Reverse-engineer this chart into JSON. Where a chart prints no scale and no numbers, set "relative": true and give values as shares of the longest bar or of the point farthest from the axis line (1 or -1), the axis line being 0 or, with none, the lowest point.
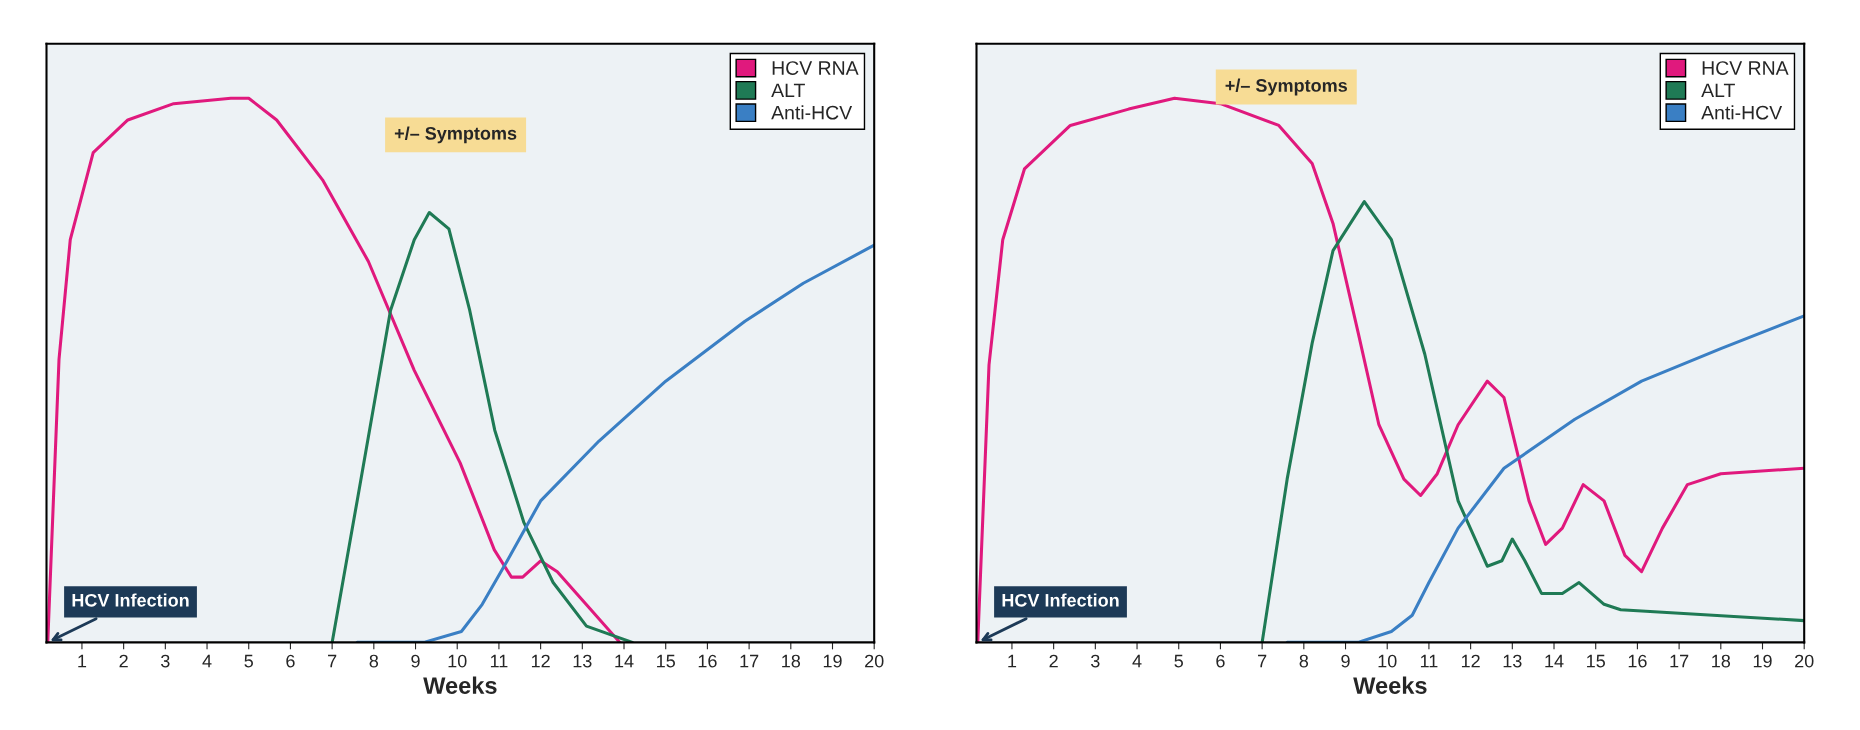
{
  "chart_data": [
    {
      "type": "line",
      "relative": true,
      "xlabel": "Weeks",
      "xlim": [
        0.15,
        20
      ],
      "xticks": [
        1,
        2,
        3,
        4,
        5,
        6,
        7,
        8,
        9,
        10,
        11,
        12,
        13,
        14,
        15,
        16,
        17,
        18,
        19,
        20
      ],
      "tick_labels": "x",
      "grid": false,
      "legend": "top right",
      "marker": "none",
      "line_style": "solid",
      "annotations": [
        "+/– Symptoms",
        {
          "text": "HCV Infection",
          "x": 0.18,
          "y": 0
        }
      ],
      "series": [
        {
          "name": "HCV RNA",
          "color": "#e0197d",
          "x": [
            0.18,
            0.45,
            0.72,
            1.27,
            2.1,
            3.2,
            4.57,
            5.0,
            5.67,
            6.77,
            7.87,
            8.97,
            10.07,
            10.89,
            11.3,
            11.57,
            12.0,
            12.4,
            13.09,
            13.9
          ],
          "values": [
            0,
            0.52,
            0.74,
            0.9,
            0.96,
            0.99,
            1.0,
            1.0,
            0.96,
            0.85,
            0.7,
            0.5,
            0.33,
            0.17,
            0.12,
            0.12,
            0.15,
            0.13,
            0.07,
            0
          ]
        },
        {
          "name": "ALT",
          "color": "#1f7a55",
          "x": [
            7.0,
            7.6,
            8.4,
            8.97,
            9.33,
            9.8,
            10.3,
            10.9,
            11.6,
            12.3,
            13.1,
            14.2
          ],
          "values": [
            0,
            0.26,
            0.61,
            0.74,
            0.79,
            0.76,
            0.61,
            0.39,
            0.22,
            0.11,
            0.03,
            0
          ]
        },
        {
          "name": "Anti-HCV",
          "color": "#3a7fc4",
          "x": [
            7.6,
            9.2,
            10.1,
            10.6,
            11.2,
            12.0,
            13.4,
            15.0,
            16.9,
            18.3,
            20
          ],
          "values": [
            0,
            0,
            0.02,
            0.07,
            0.15,
            0.26,
            0.37,
            0.48,
            0.59,
            0.66,
            0.73
          ]
        }
      ]
    },
    {
      "type": "line",
      "relative": true,
      "xlabel": "Weeks",
      "xlim": [
        0.15,
        20
      ],
      "xticks": [
        1,
        2,
        3,
        4,
        5,
        6,
        7,
        8,
        9,
        10,
        11,
        12,
        13,
        14,
        15,
        16,
        17,
        18,
        19,
        20
      ],
      "tick_labels": "x",
      "grid": false,
      "legend": "top right",
      "marker": "none",
      "line_style": "solid",
      "annotations": [
        "+/– Symptoms",
        {
          "text": "HCV Infection",
          "x": 0.18,
          "y": 0
        }
      ],
      "series": [
        {
          "name": "HCV RNA",
          "color": "#e0197d",
          "x": [
            0.18,
            0.45,
            0.78,
            1.3,
            2.4,
            3.8,
            4.9,
            6.0,
            7.4,
            8.2,
            8.7,
            9.3,
            9.8,
            10.4,
            10.8,
            11.2,
            11.7,
            12.4,
            12.8,
            13.4,
            13.8,
            14.2,
            14.7,
            15.2,
            15.7,
            16.1,
            16.6,
            17.2,
            18.0,
            20
          ],
          "values": [
            0,
            0.51,
            0.74,
            0.87,
            0.95,
            0.98,
            1.0,
            0.99,
            0.95,
            0.88,
            0.77,
            0.57,
            0.4,
            0.3,
            0.27,
            0.31,
            0.4,
            0.48,
            0.45,
            0.26,
            0.18,
            0.21,
            0.29,
            0.26,
            0.16,
            0.13,
            0.21,
            0.29,
            0.31,
            0.32
          ]
        },
        {
          "name": "ALT",
          "color": "#1f7a55",
          "x": [
            7.0,
            7.6,
            8.2,
            8.7,
            9.45,
            10.1,
            10.9,
            11.7,
            12.4,
            12.75,
            13.0,
            13.3,
            13.7,
            14.2,
            14.6,
            15.2,
            15.6,
            20
          ],
          "values": [
            0,
            0.3,
            0.55,
            0.72,
            0.81,
            0.74,
            0.53,
            0.26,
            0.14,
            0.15,
            0.19,
            0.15,
            0.09,
            0.09,
            0.11,
            0.07,
            0.06,
            0.04
          ]
        },
        {
          "name": "Anti-HCV",
          "color": "#3a7fc4",
          "x": [
            7.6,
            9.3,
            10.1,
            10.6,
            11.0,
            11.7,
            12.8,
            14.5,
            16.1,
            18.0,
            20
          ],
          "values": [
            0,
            0,
            0.02,
            0.05,
            0.11,
            0.21,
            0.32,
            0.41,
            0.48,
            0.54,
            0.6
          ]
        }
      ]
    }
  ]
}
